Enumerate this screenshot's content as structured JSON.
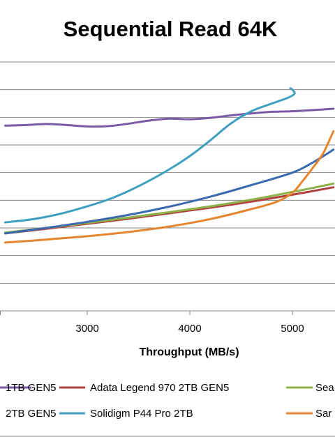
{
  "chart_data": {
    "type": "line",
    "title": "Sequential Read 64K",
    "xlabel": "Throughput  (MB/s)",
    "ylabel": "",
    "x_ticks": [
      3000,
      4000,
      5000
    ],
    "xlim": [
      2200,
      5400
    ],
    "ylim": [
      0,
      9
    ],
    "grid": true,
    "legend_position": "bottom",
    "series": [
      {
        "name": "1TB GEN5",
        "color": "#7b5ba6",
        "points": [
          [
            2200,
            6.7
          ],
          [
            2400,
            6.72
          ],
          [
            2600,
            6.76
          ],
          [
            2800,
            6.72
          ],
          [
            3000,
            6.67
          ],
          [
            3200,
            6.68
          ],
          [
            3400,
            6.77
          ],
          [
            3600,
            6.88
          ],
          [
            3800,
            6.95
          ],
          [
            4000,
            6.93
          ],
          [
            4200,
            6.98
          ],
          [
            4400,
            7.07
          ],
          [
            4600,
            7.14
          ],
          [
            4800,
            7.2
          ],
          [
            5000,
            7.22
          ],
          [
            5200,
            7.26
          ],
          [
            5400,
            7.31
          ]
        ]
      },
      {
        "name": "Adata Legend 970 2TB GEN5",
        "color": "#b0413e",
        "points": [
          [
            2200,
            2.8
          ],
          [
            2600,
            2.97
          ],
          [
            3000,
            3.15
          ],
          [
            3400,
            3.33
          ],
          [
            3800,
            3.53
          ],
          [
            4200,
            3.73
          ],
          [
            4600,
            3.95
          ],
          [
            5000,
            4.2
          ],
          [
            5400,
            4.47
          ]
        ]
      },
      {
        "name": "Sea",
        "color": "#8fb14b",
        "points": [
          [
            2200,
            2.83
          ],
          [
            2600,
            3.0
          ],
          [
            3000,
            3.18
          ],
          [
            3400,
            3.37
          ],
          [
            3800,
            3.57
          ],
          [
            4200,
            3.78
          ],
          [
            4600,
            4.02
          ],
          [
            5000,
            4.3
          ],
          [
            5400,
            4.6
          ]
        ]
      },
      {
        "name": "2TB GEN5",
        "color": "#3c6ab0",
        "points": [
          [
            2200,
            2.8
          ],
          [
            2600,
            3.0
          ],
          [
            3000,
            3.22
          ],
          [
            3400,
            3.47
          ],
          [
            3800,
            3.77
          ],
          [
            4200,
            4.13
          ],
          [
            4600,
            4.55
          ],
          [
            5000,
            5.0
          ],
          [
            5200,
            5.37
          ],
          [
            5400,
            5.83
          ]
        ]
      },
      {
        "name": "Solidigm P44 Pro 2TB",
        "color": "#3f9fbf",
        "points": [
          [
            2200,
            3.2
          ],
          [
            2400,
            3.28
          ],
          [
            2600,
            3.4
          ],
          [
            2800,
            3.57
          ],
          [
            3000,
            3.78
          ],
          [
            3200,
            4.02
          ],
          [
            3400,
            4.33
          ],
          [
            3600,
            4.7
          ],
          [
            3800,
            5.12
          ],
          [
            4000,
            5.6
          ],
          [
            4200,
            6.17
          ],
          [
            4400,
            6.78
          ],
          [
            4600,
            7.22
          ],
          [
            4800,
            7.5
          ],
          [
            4950,
            7.7
          ],
          [
            5020,
            7.85
          ],
          [
            5000,
            8.0
          ],
          [
            4980,
            8.05
          ]
        ]
      },
      {
        "name": "Sar",
        "color": "#e6852f",
        "points": [
          [
            2200,
            2.47
          ],
          [
            2600,
            2.58
          ],
          [
            3000,
            2.7
          ],
          [
            3400,
            2.85
          ],
          [
            3800,
            3.05
          ],
          [
            4200,
            3.32
          ],
          [
            4600,
            3.68
          ],
          [
            4850,
            3.95
          ],
          [
            5000,
            4.27
          ],
          [
            5100,
            4.7
          ],
          [
            5200,
            5.18
          ],
          [
            5300,
            5.7
          ],
          [
            5400,
            6.5
          ]
        ]
      }
    ]
  }
}
